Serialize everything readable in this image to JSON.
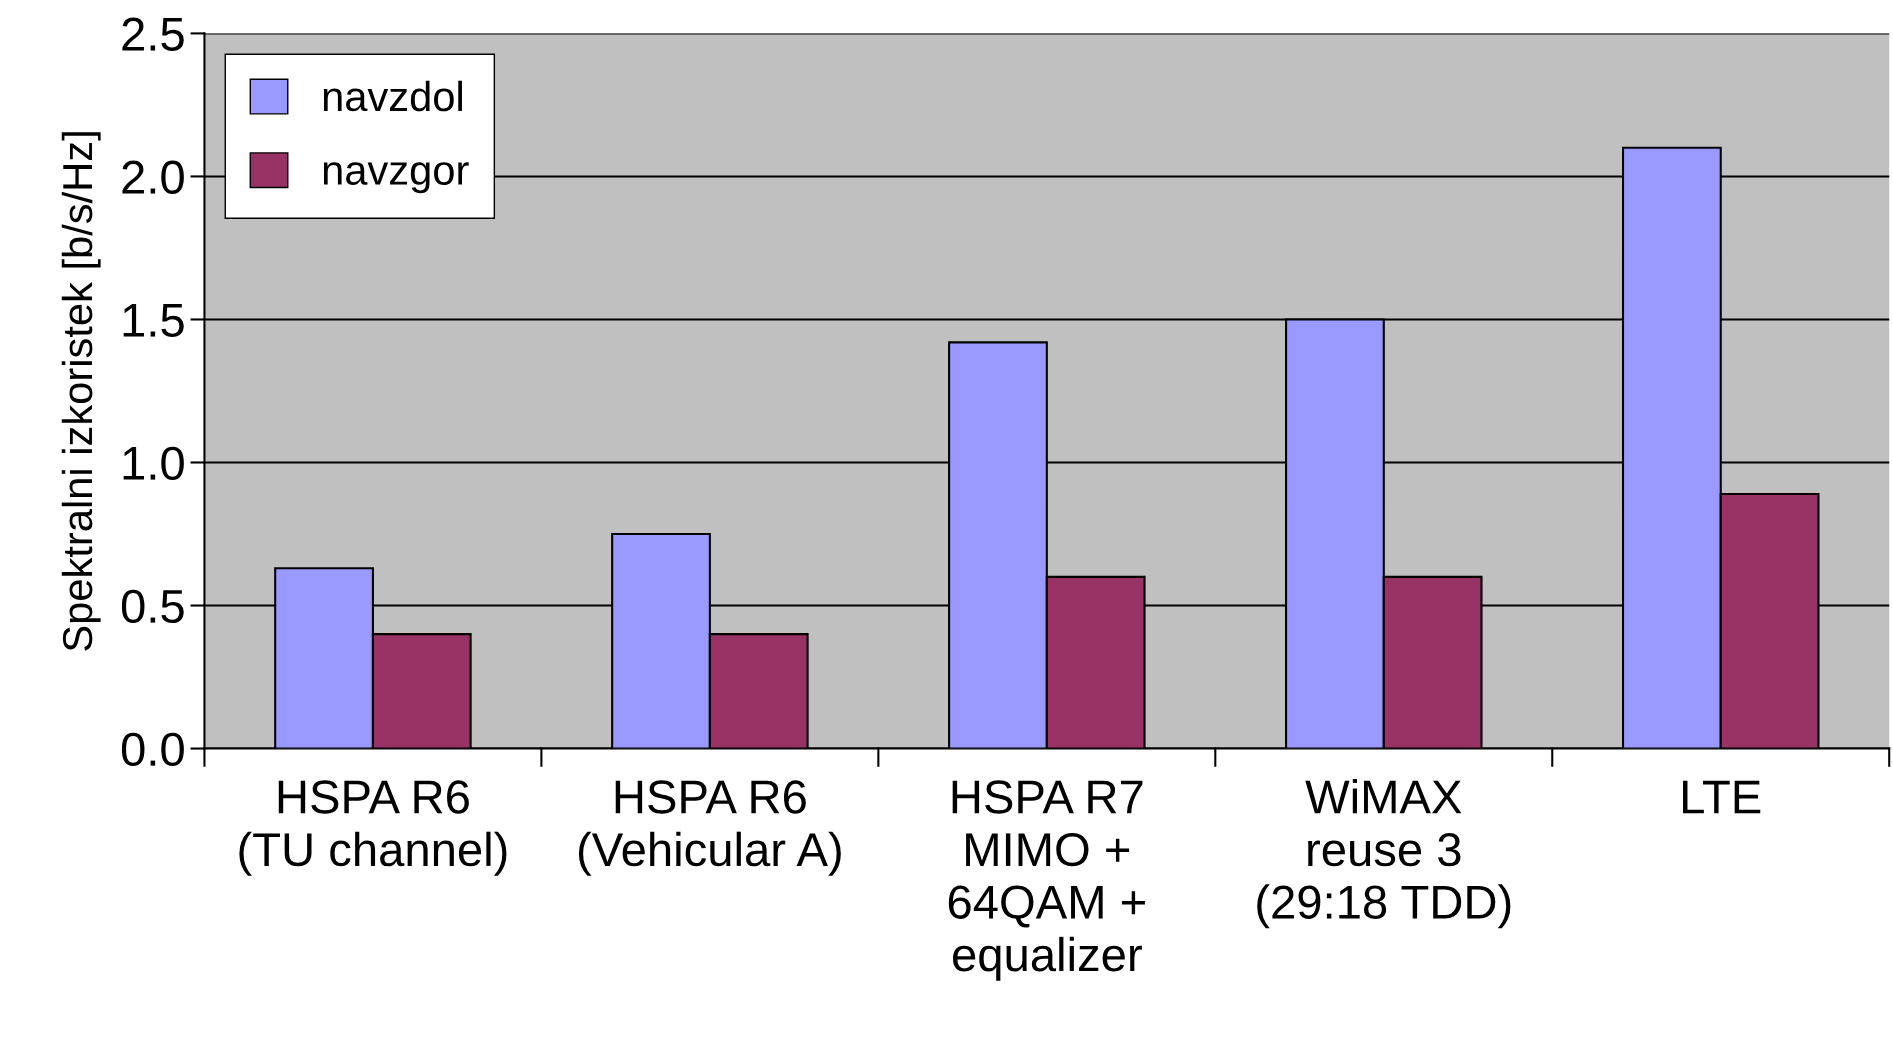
{
  "chart_data": {
    "type": "bar",
    "ylabel": "Spektralni izkoristek [b/s/Hz]",
    "categories": [
      "HSPA R6\n(TU channel)",
      "HSPA R6\n(Vehicular A)",
      "HSPA R7\nMIMO +\n64QAM +\nequalizer",
      "WiMAX\nreuse 3\n(29:18 TDD)",
      "LTE"
    ],
    "series": [
      {
        "name": "navzdol",
        "color": "#9999ff",
        "values": [
          0.63,
          0.75,
          1.42,
          1.5,
          2.1
        ]
      },
      {
        "name": "navzgor",
        "color": "#993366",
        "values": [
          0.4,
          0.4,
          0.6,
          0.6,
          0.89
        ]
      }
    ],
    "ylim": [
      0,
      2.5
    ],
    "yticks": [
      {
        "value": 0,
        "label": "0.0"
      },
      {
        "value": 0.5,
        "label": "0.5"
      },
      {
        "value": 1,
        "label": "1.0"
      },
      {
        "value": 1.5,
        "label": "1.5"
      },
      {
        "value": 2,
        "label": "2.0"
      },
      {
        "value": 2.5,
        "label": "2.5"
      }
    ],
    "grid": "y",
    "legend": "top left"
  }
}
